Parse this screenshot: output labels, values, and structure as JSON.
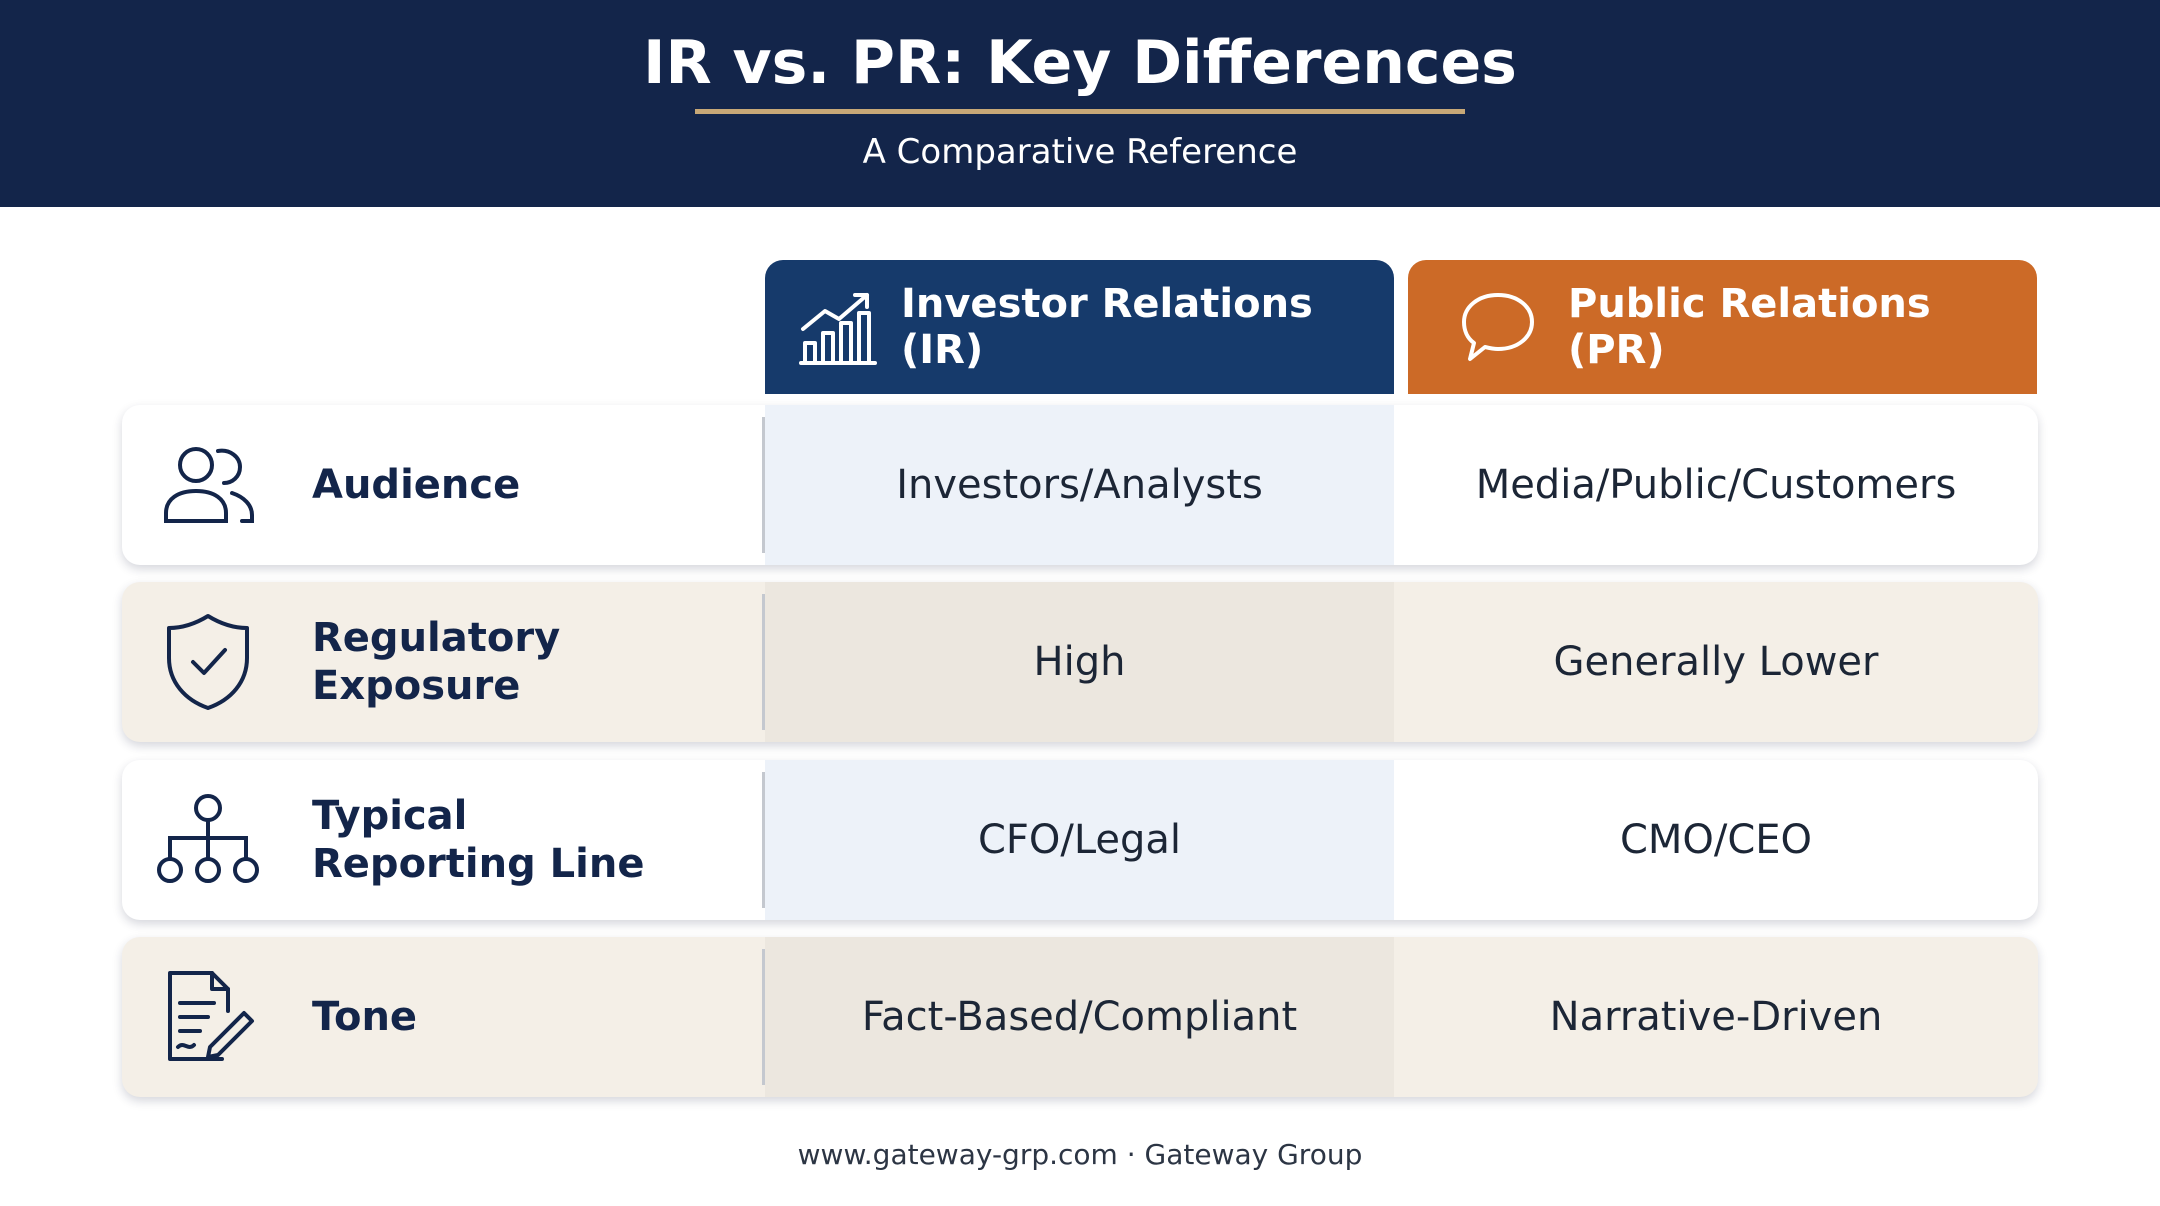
{
  "header": {
    "title": "IR vs. PR: Key Differences",
    "subtitle": "A Comparative Reference"
  },
  "columns": [
    {
      "label": "Investor Relations (IR)",
      "icon": "bar-chart-growth-icon",
      "color": "#163a6b"
    },
    {
      "label": "Public Relations (PR)",
      "icon": "speech-bubble-icon",
      "color": "#cc6a27"
    }
  ],
  "rows": [
    {
      "label": "Audience",
      "icon": "people-icon",
      "ir": "Investors/Analysts",
      "pr": "Media/Public/Customers"
    },
    {
      "label": "Regulatory Exposure",
      "icon": "shield-check-icon",
      "ir": "High",
      "pr": "Generally Lower"
    },
    {
      "label": "Typical Reporting Line",
      "icon": "org-chart-icon",
      "ir": "CFO/Legal",
      "pr": "CMO/CEO"
    },
    {
      "label": "Tone",
      "icon": "document-pen-icon",
      "ir": "Fact-Based/Compliant",
      "pr": "Narrative-Driven"
    }
  ],
  "footer": "www.gateway-grp.com · Gateway Group",
  "colors": {
    "navy": "#13254a",
    "gold": "#c7a877",
    "orange": "#cc6a27"
  }
}
